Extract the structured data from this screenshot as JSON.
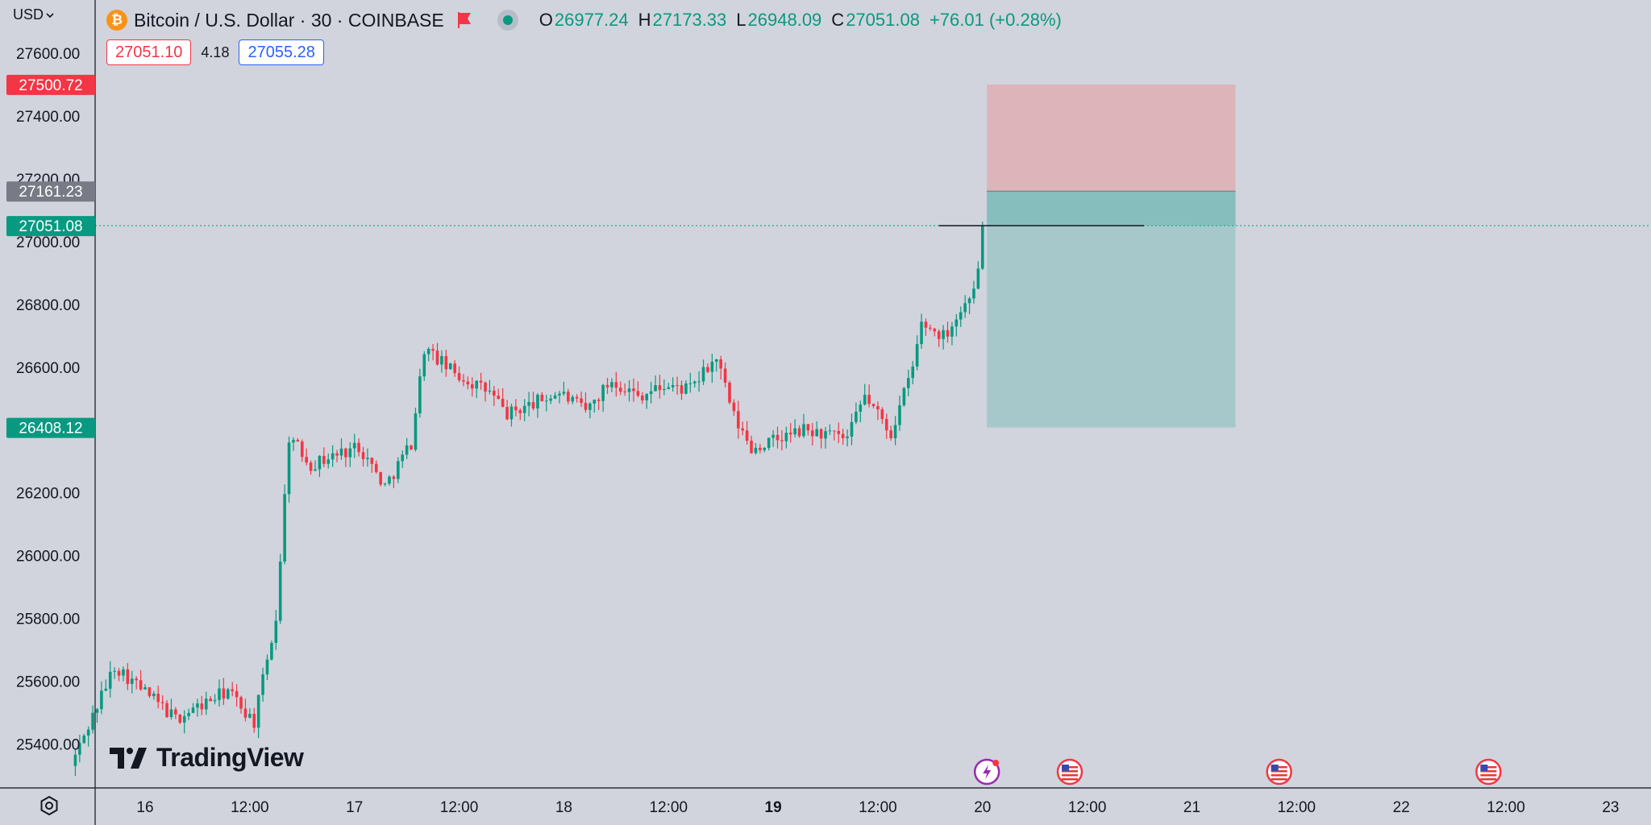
{
  "header": {
    "currency": "USD",
    "coin_glyph": "₿",
    "symbol": "Bitcoin / U.S. Dollar · 30 · COINBASE",
    "ohlc": {
      "o_label": "O",
      "o": "26977.24",
      "h_label": "H",
      "h": "27173.33",
      "l_label": "L",
      "l": "26948.09",
      "c_label": "C",
      "c": "27051.08",
      "change": "+76.01 (+0.28%)"
    }
  },
  "quote": {
    "sell": "27051.10",
    "spread": "4.18",
    "buy": "27055.28"
  },
  "logo_text": "TradingView",
  "icons": {
    "coin": "bitcoin-icon",
    "flag": "flag-icon",
    "status": "market-status-icon",
    "settings": "settings-icon",
    "events": [
      "lightning-event-icon",
      "us-flag-event-icon",
      "us-flag-event-icon",
      "us-flag-event-icon"
    ]
  },
  "colors": {
    "background": "#d1d4dc",
    "up": "#089981",
    "down": "#f23645",
    "stop_zone": "#dcb4ba",
    "target_zone": "#a6c8ca",
    "entry_zone": "#86bebe",
    "axis_line": "#2a2e39",
    "current_line": "#26a69a"
  },
  "chart_data": {
    "type": "candlestick",
    "symbol": "Bitcoin / U.S. Dollar",
    "interval": "30",
    "ylim": [
      25260,
      27770
    ],
    "x_axis": {
      "ticks": [
        {
          "label": "16",
          "bold": false
        },
        {
          "label": "12:00",
          "bold": false
        },
        {
          "label": "17",
          "bold": false
        },
        {
          "label": "12:00",
          "bold": false
        },
        {
          "label": "18",
          "bold": false
        },
        {
          "label": "12:00",
          "bold": false
        },
        {
          "label": "19",
          "bold": true
        },
        {
          "label": "12:00",
          "bold": false
        },
        {
          "label": "20",
          "bold": false
        },
        {
          "label": "12:00",
          "bold": false
        },
        {
          "label": "21",
          "bold": false
        },
        {
          "label": "12:00",
          "bold": false
        },
        {
          "label": "22",
          "bold": false
        },
        {
          "label": "12:00",
          "bold": false
        },
        {
          "label": "23",
          "bold": false
        }
      ]
    },
    "y_axis": {
      "ticks": [
        "27600.00",
        "27400.00",
        "27200.00",
        "27000.00",
        "26800.00",
        "26600.00",
        "26400.00",
        "26200.00",
        "26000.00",
        "25800.00",
        "25600.00",
        "25400.00"
      ]
    },
    "price_tags": [
      {
        "value": 27500.72,
        "label": "27500.72",
        "role": "stop"
      },
      {
        "value": 27161.23,
        "label": "27161.23",
        "role": "entry"
      },
      {
        "value": 27051.08,
        "label": "27051.08",
        "role": "current"
      },
      {
        "value": 26408.12,
        "label": "26408.12",
        "role": "target"
      }
    ],
    "position_tool": {
      "type": "short",
      "entry": 27161.23,
      "stop": 27500.72,
      "target": 26408.12,
      "x_start": "2023-03-20 00:30",
      "x_end": "2023-03-21 05:00"
    },
    "current_price": 27051.08,
    "hline": {
      "price": 27051.08,
      "x_start": "2023-03-19 19:00",
      "x_end": "2023-03-20 18:30"
    },
    "candles_summary": [
      {
        "time": "2023-03-15 16:00",
        "price": 25330
      },
      {
        "time": "2023-03-15 21:00",
        "price": 25650
      },
      {
        "time": "2023-03-16 04:00",
        "price": 25480
      },
      {
        "time": "2023-03-16 10:00",
        "price": 25570
      },
      {
        "time": "2023-03-16 13:00",
        "price": 25470
      },
      {
        "time": "2023-03-16 15:30",
        "price": 25800
      },
      {
        "time": "2023-03-16 17:00",
        "price": 26380
      },
      {
        "time": "2023-03-16 19:30",
        "price": 26290
      },
      {
        "time": "2023-03-17 01:00",
        "price": 26350
      },
      {
        "time": "2023-03-17 04:00",
        "price": 26220
      },
      {
        "time": "2023-03-17 07:00",
        "price": 26360
      },
      {
        "time": "2023-03-17 08:30",
        "price": 26660
      },
      {
        "time": "2023-03-17 12:00",
        "price": 26580
      },
      {
        "time": "2023-03-17 16:00",
        "price": 26520
      },
      {
        "time": "2023-03-17 18:00",
        "price": 26450
      },
      {
        "time": "2023-03-18 00:00",
        "price": 26520
      },
      {
        "time": "2023-03-18 03:00",
        "price": 26460
      },
      {
        "time": "2023-03-18 06:00",
        "price": 26560
      },
      {
        "time": "2023-03-18 09:00",
        "price": 26510
      },
      {
        "time": "2023-03-18 12:00",
        "price": 26540
      },
      {
        "time": "2023-03-18 15:00",
        "price": 26530
      },
      {
        "time": "2023-03-18 18:00",
        "price": 26630
      },
      {
        "time": "2023-03-18 20:00",
        "price": 26440
      },
      {
        "time": "2023-03-18 22:00",
        "price": 26340
      },
      {
        "time": "2023-03-19 04:00",
        "price": 26400
      },
      {
        "time": "2023-03-19 09:00",
        "price": 26370
      },
      {
        "time": "2023-03-19 11:00",
        "price": 26510
      },
      {
        "time": "2023-03-19 14:00",
        "price": 26390
      },
      {
        "time": "2023-03-19 16:30",
        "price": 26600
      },
      {
        "time": "2023-03-19 17:30",
        "price": 26740
      },
      {
        "time": "2023-03-19 20:00",
        "price": 26700
      },
      {
        "time": "2023-03-19 22:30",
        "price": 26800
      },
      {
        "time": "2023-03-20 00:00",
        "price": 26900
      },
      {
        "time": "2023-03-20 00:30",
        "price": 27051.08
      }
    ],
    "events": [
      {
        "time": "2023-03-20 00:30",
        "kind": "lightning"
      },
      {
        "time": "2023-03-20 10:00",
        "kind": "us"
      },
      {
        "time": "2023-03-21 10:00",
        "kind": "us"
      },
      {
        "time": "2023-03-22 10:00",
        "kind": "us"
      }
    ]
  }
}
